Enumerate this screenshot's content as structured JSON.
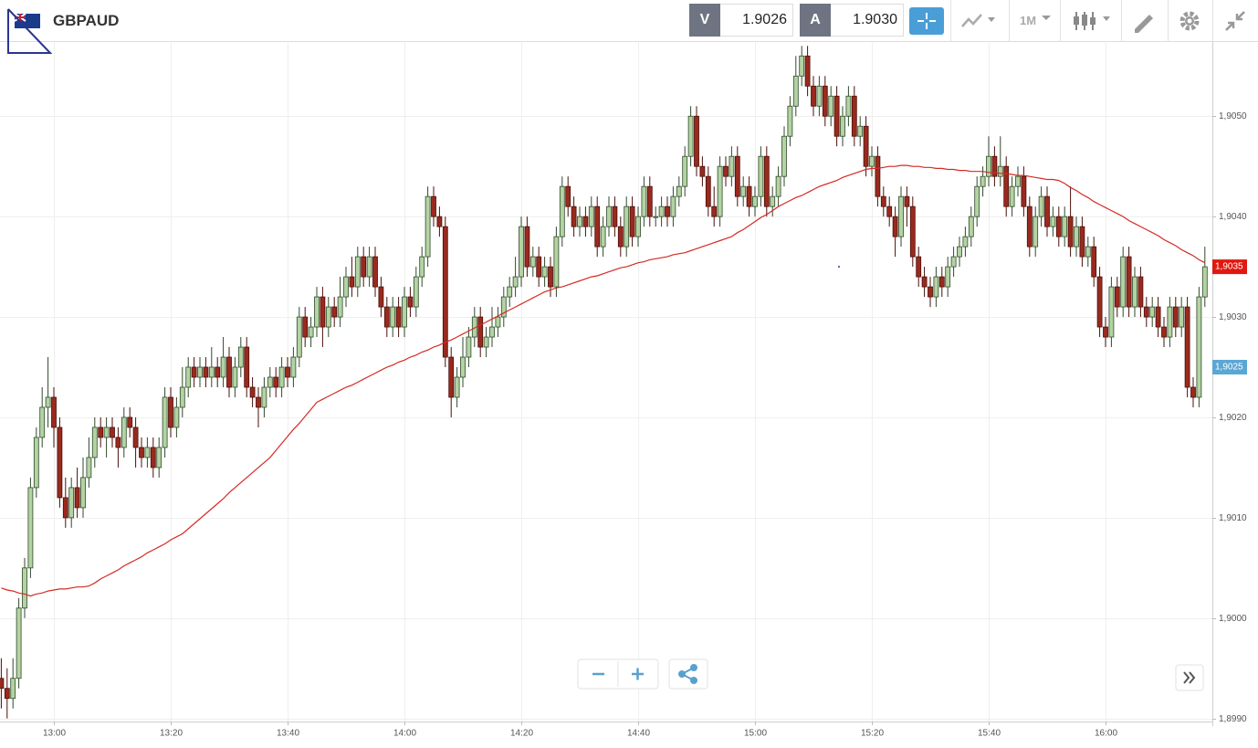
{
  "header": {
    "symbol": "GBPAUD",
    "bid_label": "V",
    "bid": "1.9026",
    "ask_label": "A",
    "ask": "1.9030",
    "timeframe": "1M"
  },
  "chart_data": {
    "type": "candlestick",
    "grid": true,
    "up_color": "#b3d3a3",
    "down_color": "#9a2a1e",
    "ylim": [
      1.89897,
      1.90573
    ],
    "yticks": [
      {
        "value": 1.899,
        "label": "1,8990"
      },
      {
        "value": 1.9,
        "label": "1,9000"
      },
      {
        "value": 1.901,
        "label": "1,9010"
      },
      {
        "value": 1.902,
        "label": "1,9020"
      },
      {
        "value": 1.903,
        "label": "1,9030"
      },
      {
        "value": 1.904,
        "label": "1,9040"
      },
      {
        "value": 1.905,
        "label": "1,9050"
      }
    ],
    "price_tags": [
      {
        "value": 1.9035,
        "label": "1,9035",
        "color": "#e0180f"
      },
      {
        "value": 1.9025,
        "label": "1,9025",
        "color": "#5aa7d3"
      }
    ],
    "categories": [
      null,
      null,
      null,
      null,
      null,
      null,
      null,
      null,
      null,
      "13:00",
      null,
      null,
      null,
      null,
      null,
      null,
      null,
      null,
      null,
      null,
      null,
      null,
      null,
      null,
      null,
      null,
      null,
      null,
      null,
      "13:20",
      null,
      null,
      null,
      null,
      null,
      null,
      null,
      null,
      null,
      null,
      null,
      null,
      null,
      null,
      null,
      null,
      null,
      null,
      null,
      "13:40",
      null,
      null,
      null,
      null,
      null,
      null,
      null,
      null,
      null,
      null,
      null,
      null,
      null,
      null,
      null,
      null,
      null,
      null,
      null,
      "14:00",
      null,
      null,
      null,
      null,
      null,
      null,
      null,
      null,
      null,
      null,
      null,
      null,
      null,
      null,
      null,
      null,
      null,
      null,
      null,
      "14:20",
      null,
      null,
      null,
      null,
      null,
      null,
      null,
      null,
      null,
      null,
      null,
      null,
      null,
      null,
      null,
      null,
      null,
      null,
      null,
      "14:40",
      null,
      null,
      null,
      null,
      null,
      null,
      null,
      null,
      null,
      null,
      null,
      null,
      null,
      null,
      null,
      null,
      null,
      null,
      null,
      "15:00",
      null,
      null,
      null,
      null,
      null,
      null,
      null,
      null,
      null,
      null,
      null,
      null,
      null,
      null,
      null,
      null,
      null,
      null,
      null,
      "15:20",
      null,
      null,
      null,
      null,
      null,
      null,
      null,
      null,
      null,
      null,
      null,
      null,
      null,
      null,
      null,
      null,
      null,
      null,
      null,
      "15:40",
      null,
      null,
      null,
      null,
      null,
      null,
      null,
      null,
      null,
      null,
      null,
      null,
      null,
      null,
      null,
      null,
      null,
      null,
      null,
      "16:00",
      null,
      null,
      null,
      null,
      null,
      null,
      null,
      null,
      null,
      null,
      null,
      null,
      null,
      null,
      null,
      null,
      null
    ],
    "open": [
      1.8994,
      1.8993,
      1.8992,
      1.8994,
      1.9001,
      1.9005,
      1.9013,
      1.9018,
      1.9021,
      1.9022,
      1.9019,
      1.9012,
      1.901,
      1.9013,
      1.9011,
      1.9014,
      1.9016,
      1.9019,
      1.9018,
      1.9019,
      1.9018,
      1.9017,
      1.902,
      1.9019,
      1.9017,
      1.9016,
      1.9017,
      1.9015,
      1.9017,
      1.9022,
      1.9019,
      1.9021,
      1.9023,
      1.9025,
      1.9024,
      1.9025,
      1.9024,
      1.9025,
      1.9024,
      1.9026,
      1.9023,
      1.9025,
      1.9027,
      1.9023,
      1.9022,
      1.9021,
      1.9023,
      1.9024,
      1.9023,
      1.9025,
      1.9024,
      1.9026,
      1.903,
      1.9028,
      1.9029,
      1.9032,
      1.9029,
      1.9031,
      1.903,
      1.9032,
      1.9034,
      1.9033,
      1.9036,
      1.9034,
      1.9036,
      1.9033,
      1.9031,
      1.9029,
      1.9031,
      1.9029,
      1.9032,
      1.9031,
      1.9034,
      1.9036,
      1.9042,
      1.904,
      1.9039,
      1.9026,
      1.9022,
      1.9024,
      1.9026,
      1.9028,
      1.903,
      1.9027,
      1.9028,
      1.9029,
      1.903,
      1.9032,
      1.9033,
      1.9034,
      1.9039,
      1.9035,
      1.9036,
      1.9034,
      1.9035,
      1.9033,
      1.9038,
      1.9043,
      1.9041,
      1.9039,
      1.904,
      1.9039,
      1.9041,
      1.9037,
      1.9039,
      1.9041,
      1.9039,
      1.9037,
      1.9041,
      1.9038,
      1.904,
      1.9043,
      1.904,
      1.904,
      1.9041,
      1.904,
      1.9042,
      1.9043,
      1.9046,
      1.905,
      1.9045,
      1.9044,
      1.9041,
      1.904,
      1.9045,
      1.9044,
      1.9046,
      1.9042,
      1.9043,
      1.9041,
      1.9042,
      1.9046,
      1.9041,
      1.9042,
      1.9044,
      1.9048,
      1.9051,
      1.9054,
      1.9056,
      1.9053,
      1.9051,
      1.9053,
      1.905,
      1.9052,
      1.9048,
      1.905,
      1.9052,
      1.9048,
      1.9049,
      1.9045,
      1.9046,
      1.9042,
      1.9041,
      1.904,
      1.9038,
      1.9042,
      1.9041,
      1.9036,
      1.9034,
      1.9033,
      1.9032,
      1.9034,
      1.9033,
      1.9035,
      1.9036,
      1.9037,
      1.9038,
      1.904,
      1.9043,
      1.9044,
      1.9046,
      1.9044,
      1.9045,
      1.9041,
      1.9043,
      1.9044,
      1.9041,
      1.9037,
      1.904,
      1.9042,
      1.9039,
      1.904,
      1.9038,
      1.904,
      1.9037,
      1.9039,
      1.9036,
      1.9037,
      1.9034,
      1.9029,
      1.9028,
      1.9033,
      1.9031,
      1.9036,
      1.9031,
      1.9034,
      1.9031,
      1.903,
      1.9031,
      1.9029,
      1.9028,
      1.9031,
      1.9029,
      1.9031,
      1.9023,
      1.9022,
      1.9032
    ],
    "high": [
      1.8996,
      1.8995,
      1.8996,
      1.9002,
      1.9006,
      1.9014,
      1.9019,
      1.9023,
      1.9026,
      1.9023,
      1.902,
      1.9014,
      1.9014,
      1.9015,
      1.9016,
      1.9018,
      1.902,
      1.902,
      1.902,
      1.902,
      1.9019,
      1.9021,
      1.9021,
      1.902,
      1.9018,
      1.9018,
      1.9018,
      1.9018,
      1.9023,
      1.9023,
      1.9022,
      1.9025,
      1.9026,
      1.9026,
      1.9026,
      1.9026,
      1.9027,
      1.9026,
      1.9028,
      1.9027,
      1.9026,
      1.9028,
      1.9028,
      1.9024,
      1.9023,
      1.9024,
      1.9025,
      1.9025,
      1.9026,
      1.9026,
      1.9027,
      1.9031,
      1.9031,
      1.903,
      1.9033,
      1.9033,
      1.9032,
      1.9032,
      1.9034,
      1.9035,
      1.9036,
      1.9037,
      1.9037,
      1.9037,
      1.9037,
      1.9034,
      1.9032,
      1.9032,
      1.9032,
      1.9033,
      1.9033,
      1.9035,
      1.9037,
      1.9043,
      1.9043,
      1.9041,
      1.904,
      1.9027,
      1.9025,
      1.9028,
      1.9029,
      1.9031,
      1.9031,
      1.9029,
      1.9031,
      1.9031,
      1.9033,
      1.9034,
      1.9036,
      1.904,
      1.904,
      1.9037,
      1.9037,
      1.9036,
      1.9036,
      1.9039,
      1.9044,
      1.9044,
      1.9042,
      1.9041,
      1.9041,
      1.9042,
      1.9042,
      1.904,
      1.9042,
      1.9042,
      1.904,
      1.9042,
      1.9042,
      1.9041,
      1.9044,
      1.9044,
      1.9041,
      1.9042,
      1.9042,
      1.9043,
      1.9044,
      1.9047,
      1.9051,
      1.9051,
      1.9046,
      1.9045,
      1.9043,
      1.9046,
      1.9046,
      1.9047,
      1.9047,
      1.9044,
      1.9044,
      1.9043,
      1.9047,
      1.9047,
      1.9043,
      1.9045,
      1.9049,
      1.9052,
      1.9056,
      1.9057,
      1.9057,
      1.9054,
      1.9054,
      1.9054,
      1.9053,
      1.9053,
      1.9051,
      1.9053,
      1.9053,
      1.905,
      1.905,
      1.9047,
      1.9047,
      1.9043,
      1.9042,
      1.9041,
      1.9043,
      1.9043,
      1.9042,
      1.9037,
      1.9035,
      1.9034,
      1.9035,
      1.9035,
      1.9036,
      1.9037,
      1.9038,
      1.9039,
      1.9041,
      1.9044,
      1.9045,
      1.9048,
      1.9047,
      1.9048,
      1.9046,
      1.9044,
      1.9045,
      1.9045,
      1.9042,
      1.9041,
      1.9043,
      1.9043,
      1.9041,
      1.9041,
      1.9041,
      1.9043,
      1.904,
      1.904,
      1.9038,
      1.9038,
      1.9035,
      1.903,
      1.9034,
      1.9034,
      1.9037,
      1.9037,
      1.9035,
      1.9035,
      1.9032,
      1.9032,
      1.9032,
      1.903,
      1.9032,
      1.9032,
      1.9032,
      1.9032,
      1.9024,
      1.9033,
      1.9037
    ],
    "low": [
      1.8991,
      1.899,
      1.8991,
      1.8993,
      1.9,
      1.9004,
      1.9012,
      1.9017,
      1.9019,
      1.9017,
      1.9011,
      1.9009,
      1.9009,
      1.901,
      1.901,
      1.9013,
      1.9015,
      1.9017,
      1.9016,
      1.9017,
      1.9015,
      1.9016,
      1.9018,
      1.9015,
      1.9015,
      1.9015,
      1.9014,
      1.9014,
      1.9016,
      1.9018,
      1.9018,
      1.902,
      1.9022,
      1.9023,
      1.9023,
      1.9023,
      1.9023,
      1.9023,
      1.9023,
      1.9022,
      1.9022,
      1.9024,
      1.9022,
      1.9021,
      1.9019,
      1.902,
      1.9022,
      1.9022,
      1.9022,
      1.9023,
      1.9023,
      1.9025,
      1.9027,
      1.9027,
      1.9028,
      1.9027,
      1.9028,
      1.9029,
      1.9029,
      1.9031,
      1.9032,
      1.9032,
      1.9033,
      1.9033,
      1.9032,
      1.903,
      1.9028,
      1.9028,
      1.9028,
      1.9028,
      1.903,
      1.903,
      1.9033,
      1.9035,
      1.9039,
      1.9038,
      1.9025,
      1.902,
      1.9021,
      1.9023,
      1.9025,
      1.9027,
      1.9026,
      1.9026,
      1.9027,
      1.9028,
      1.9029,
      1.9031,
      1.9032,
      1.9033,
      1.9034,
      1.9034,
      1.9033,
      1.9033,
      1.9032,
      1.9032,
      1.9037,
      1.904,
      1.9038,
      1.9038,
      1.9038,
      1.9038,
      1.9036,
      1.9036,
      1.9038,
      1.9038,
      1.9036,
      1.9036,
      1.9037,
      1.9037,
      1.9039,
      1.9039,
      1.9039,
      1.9039,
      1.9039,
      1.9039,
      1.9041,
      1.9042,
      1.9045,
      1.9044,
      1.9043,
      1.904,
      1.9039,
      1.9039,
      1.9043,
      1.9043,
      1.9041,
      1.9041,
      1.904,
      1.904,
      1.9041,
      1.904,
      1.904,
      1.9041,
      1.9043,
      1.9047,
      1.905,
      1.9053,
      1.9052,
      1.905,
      1.905,
      1.9049,
      1.9049,
      1.9047,
      1.9047,
      1.9049,
      1.9047,
      1.9047,
      1.9044,
      1.9044,
      1.9041,
      1.904,
      1.9039,
      1.9036,
      1.9037,
      1.9039,
      1.9035,
      1.9033,
      1.9032,
      1.9031,
      1.9031,
      1.9032,
      1.9032,
      1.9034,
      1.9035,
      1.9036,
      1.9037,
      1.9039,
      1.9042,
      1.9043,
      1.9043,
      1.9043,
      1.904,
      1.904,
      1.9042,
      1.904,
      1.9036,
      1.9036,
      1.9039,
      1.9038,
      1.9038,
      1.9037,
      1.9037,
      1.9036,
      1.9036,
      1.9035,
      1.9035,
      1.9033,
      1.9028,
      1.9027,
      1.9027,
      1.903,
      1.903,
      1.903,
      1.903,
      1.903,
      1.9029,
      1.9029,
      1.9028,
      1.9027,
      1.9027,
      1.9028,
      1.9028,
      1.9022,
      1.9021,
      1.9021,
      1.9031
    ],
    "close": [
      1.8993,
      1.8992,
      1.8994,
      1.9001,
      1.9005,
      1.9013,
      1.9018,
      1.9021,
      1.9022,
      1.9019,
      1.9012,
      1.901,
      1.9013,
      1.9011,
      1.9014,
      1.9016,
      1.9019,
      1.9018,
      1.9019,
      1.9018,
      1.9017,
      1.902,
      1.9019,
      1.9017,
      1.9016,
      1.9017,
      1.9015,
      1.9017,
      1.9022,
      1.9019,
      1.9021,
      1.9023,
      1.9025,
      1.9024,
      1.9025,
      1.9024,
      1.9025,
      1.9024,
      1.9026,
      1.9023,
      1.9025,
      1.9027,
      1.9023,
      1.9022,
      1.9021,
      1.9023,
      1.9024,
      1.9023,
      1.9025,
      1.9024,
      1.9026,
      1.903,
      1.9028,
      1.9029,
      1.9032,
      1.9029,
      1.9031,
      1.903,
      1.9032,
      1.9034,
      1.9033,
      1.9036,
      1.9034,
      1.9036,
      1.9033,
      1.9031,
      1.9029,
      1.9031,
      1.9029,
      1.9032,
      1.9031,
      1.9034,
      1.9036,
      1.9042,
      1.904,
      1.9039,
      1.9026,
      1.9022,
      1.9024,
      1.9026,
      1.9028,
      1.903,
      1.9027,
      1.9028,
      1.9029,
      1.903,
      1.9032,
      1.9033,
      1.9034,
      1.9039,
      1.9035,
      1.9036,
      1.9034,
      1.9035,
      1.9033,
      1.9038,
      1.9043,
      1.9041,
      1.9039,
      1.904,
      1.9039,
      1.9041,
      1.9037,
      1.9039,
      1.9041,
      1.9039,
      1.9037,
      1.9041,
      1.9038,
      1.904,
      1.9043,
      1.904,
      1.904,
      1.9041,
      1.904,
      1.9042,
      1.9043,
      1.9046,
      1.905,
      1.9045,
      1.9044,
      1.9041,
      1.904,
      1.9045,
      1.9044,
      1.9046,
      1.9042,
      1.9043,
      1.9041,
      1.9042,
      1.9046,
      1.9041,
      1.9042,
      1.9044,
      1.9048,
      1.9051,
      1.9054,
      1.9056,
      1.9053,
      1.9051,
      1.9053,
      1.905,
      1.9052,
      1.9048,
      1.905,
      1.9052,
      1.9048,
      1.9049,
      1.9045,
      1.9046,
      1.9042,
      1.9041,
      1.904,
      1.9038,
      1.9042,
      1.9041,
      1.9036,
      1.9034,
      1.9033,
      1.9032,
      1.9034,
      1.9033,
      1.9035,
      1.9036,
      1.9037,
      1.9038,
      1.904,
      1.9043,
      1.9044,
      1.9046,
      1.9044,
      1.9045,
      1.9041,
      1.9043,
      1.9044,
      1.9041,
      1.9037,
      1.904,
      1.9042,
      1.9039,
      1.904,
      1.9038,
      1.904,
      1.9037,
      1.9039,
      1.9036,
      1.9037,
      1.9034,
      1.9029,
      1.9028,
      1.9033,
      1.9031,
      1.9036,
      1.9031,
      1.9034,
      1.9031,
      1.903,
      1.9031,
      1.9029,
      1.9028,
      1.9031,
      1.9029,
      1.9031,
      1.9023,
      1.9022,
      1.9032,
      1.9035
    ],
    "ma": {
      "color": "#d42a24",
      "values": [
        1.9003,
        1.90028,
        1.90027,
        1.90025,
        1.90024,
        1.90022,
        1.90024,
        1.90025,
        1.90027,
        1.90028,
        1.90029,
        1.90029,
        1.9003,
        1.90031,
        1.90031,
        1.90032,
        1.90035,
        1.90039,
        1.90042,
        1.90045,
        1.90048,
        1.90052,
        1.90055,
        1.90058,
        1.90061,
        1.90065,
        1.90068,
        1.90071,
        1.90074,
        1.90078,
        1.90081,
        1.90084,
        1.90089,
        1.90094,
        1.90099,
        1.90104,
        1.90109,
        1.90114,
        1.90119,
        1.90125,
        1.9013,
        1.90135,
        1.9014,
        1.90145,
        1.9015,
        1.90155,
        1.9016,
        1.90167,
        1.90174,
        1.90181,
        1.90188,
        1.90194,
        1.90201,
        1.90208,
        1.90215,
        1.90218,
        1.90221,
        1.90224,
        1.90227,
        1.9023,
        1.90232,
        1.90235,
        1.90238,
        1.90241,
        1.90244,
        1.90247,
        1.9025,
        1.90252,
        1.90255,
        1.90257,
        1.9026,
        1.90262,
        1.90265,
        1.90267,
        1.9027,
        1.90272,
        1.90275,
        1.90277,
        1.9028,
        1.90283,
        1.90286,
        1.90289,
        1.90292,
        1.90295,
        1.90298,
        1.90301,
        1.90304,
        1.90307,
        1.9031,
        1.90313,
        1.90316,
        1.90319,
        1.90322,
        1.90325,
        1.90327,
        1.90329,
        1.9033,
        1.90332,
        1.90334,
        1.90336,
        1.90338,
        1.9034,
        1.90341,
        1.90343,
        1.90345,
        1.90347,
        1.90349,
        1.9035,
        1.90352,
        1.90354,
        1.90355,
        1.90357,
        1.90358,
        1.90359,
        1.9036,
        1.90362,
        1.90363,
        1.90364,
        1.90366,
        1.90368,
        1.9037,
        1.90372,
        1.90374,
        1.90376,
        1.90378,
        1.9038,
        1.90384,
        1.90387,
        1.90391,
        1.90395,
        1.90399,
        1.90402,
        1.90406,
        1.9041,
        1.90413,
        1.90416,
        1.90419,
        1.90421,
        1.90424,
        1.90427,
        1.9043,
        1.90432,
        1.90434,
        1.90436,
        1.90439,
        1.90441,
        1.90443,
        1.90445,
        1.90447,
        1.90448,
        1.90448,
        1.90449,
        1.9045,
        1.9045,
        1.90451,
        1.90451,
        1.9045,
        1.9045,
        1.90449,
        1.90449,
        1.90448,
        1.90448,
        1.90447,
        1.90447,
        1.90446,
        1.90446,
        1.90445,
        1.90445,
        1.90445,
        1.90444,
        1.90444,
        1.90443,
        1.90443,
        1.90442,
        1.90441,
        1.90441,
        1.9044,
        1.90439,
        1.90438,
        1.90437,
        1.90437,
        1.90436,
        1.90433,
        1.90429,
        1.90426,
        1.90422,
        1.90419,
        1.90415,
        1.90412,
        1.90409,
        1.90406,
        1.90403,
        1.904,
        1.90396,
        1.90393,
        1.9039,
        1.90387,
        1.90384,
        1.90381,
        1.90377,
        1.90374,
        1.90371,
        1.90367,
        1.90364,
        1.90361,
        1.90357,
        1.90354
      ]
    }
  }
}
